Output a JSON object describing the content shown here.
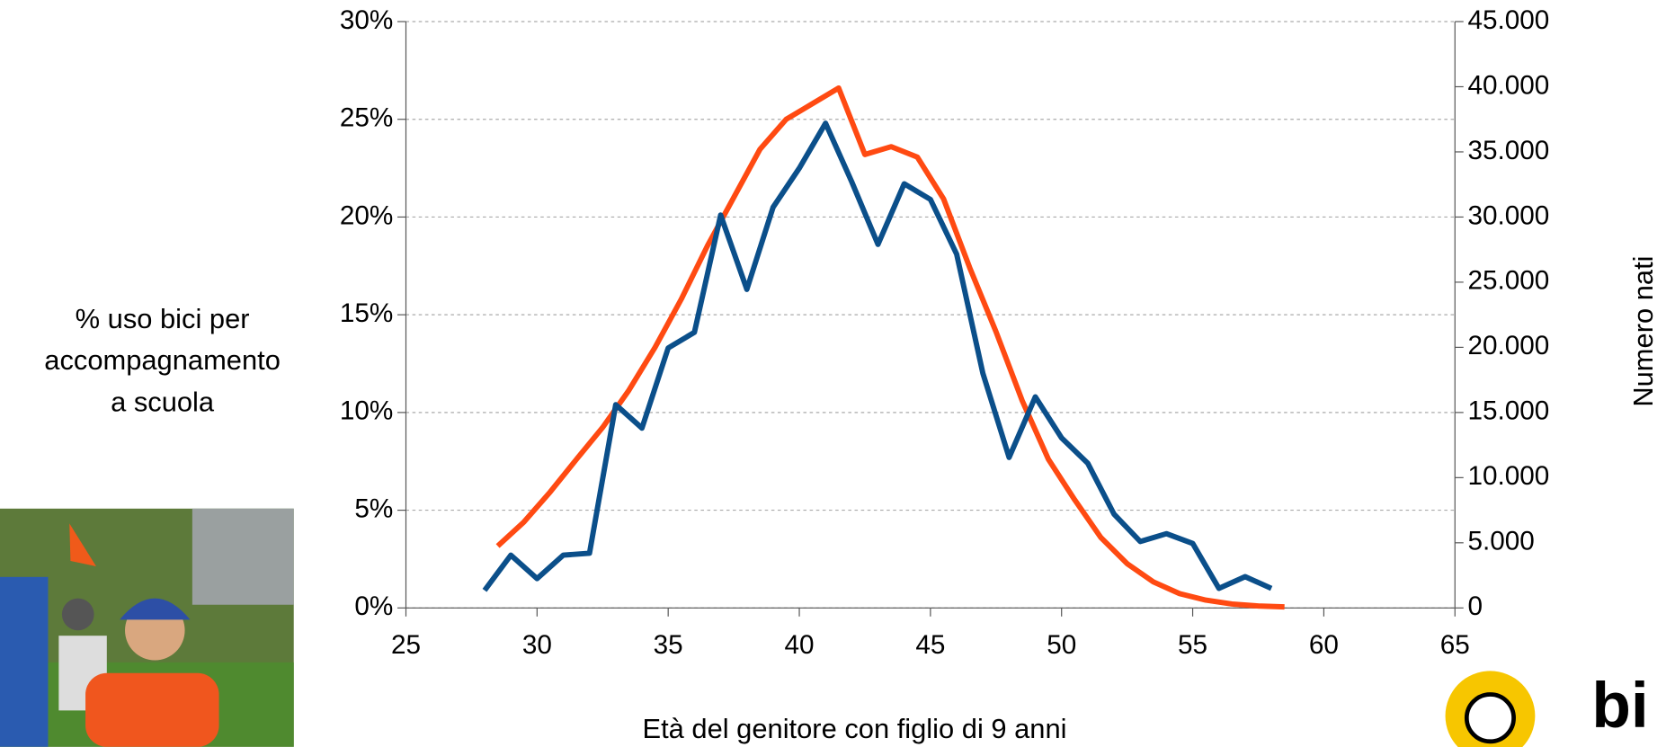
{
  "chart_data": {
    "type": "line",
    "ylabel": [
      "% uso bici per",
      "accompagnamento",
      "a scuola"
    ],
    "xlabel": "Età del genitore con figlio di 9 anni",
    "y2label": "Numero nati",
    "xlim": [
      25,
      65
    ],
    "xticks": [
      25,
      30,
      35,
      40,
      45,
      50,
      55,
      60,
      65
    ],
    "ylim": [
      0,
      30
    ],
    "yticks": [
      {
        "value": 0,
        "label": "0%"
      },
      {
        "value": 5,
        "label": "5%"
      },
      {
        "value": 10,
        "label": "10%"
      },
      {
        "value": 15,
        "label": "15%"
      },
      {
        "value": 20,
        "label": "20%"
      },
      {
        "value": 25,
        "label": "25%"
      },
      {
        "value": 30,
        "label": "30%"
      }
    ],
    "y2lim": [
      0,
      45000
    ],
    "y2ticks": [
      0,
      {
        "value": 5000,
        "label": "5.000"
      },
      {
        "value": 10000,
        "label": "10.000"
      },
      {
        "value": 15000,
        "label": "15.000"
      },
      {
        "value": 20000,
        "label": "20.000"
      },
      {
        "value": 25000,
        "label": "25.000"
      },
      {
        "value": 30000,
        "label": "30.000"
      },
      {
        "value": 35000,
        "label": "35.000"
      },
      {
        "value": 40000,
        "label": "40.000"
      },
      {
        "value": 45000,
        "label": "45.000"
      }
    ],
    "grid": true,
    "series": [
      {
        "color": "#ff4a12",
        "axis": "y2",
        "x": [
          28.5,
          29.5,
          30.5,
          31.5,
          32.5,
          33.5,
          34.5,
          35.5,
          36.5,
          37.5,
          38.5,
          39.5,
          40.5,
          41.5,
          42.5,
          43.5,
          44.5,
          45.5,
          46.5,
          47.5,
          48.5,
          49.5,
          50.5,
          51.5,
          52.5,
          53.5,
          54.5,
          55.5,
          56.5,
          57.5,
          58.5
        ],
        "values": [
          4750,
          6600,
          8900,
          11400,
          13850,
          16700,
          20000,
          23700,
          27800,
          31500,
          35200,
          37500,
          38700,
          39900,
          34800,
          35400,
          34600,
          31400,
          26100,
          21200,
          15900,
          11400,
          8300,
          5400,
          3400,
          2000,
          1100,
          600,
          300,
          150,
          80
        ]
      },
      {
        "color": "#0b4f8a",
        "x": [
          28,
          29,
          30,
          31,
          32,
          33,
          34,
          35,
          36,
          37,
          38,
          39,
          40,
          41,
          42,
          43,
          44,
          45,
          46,
          47,
          48,
          49,
          50,
          51,
          52,
          53,
          54,
          55,
          56,
          57,
          58
        ],
        "values": [
          0.9,
          2.7,
          1.5,
          2.7,
          2.8,
          10.4,
          9.2,
          13.3,
          14.1,
          20.1,
          16.3,
          20.5,
          22.5,
          24.8,
          21.8,
          18.6,
          21.7,
          20.9,
          18.1,
          12.0,
          7.7,
          10.8,
          8.7,
          7.4,
          4.8,
          3.4,
          3.8,
          3.3,
          1.0,
          1.6,
          1.0
        ]
      }
    ]
  }
}
